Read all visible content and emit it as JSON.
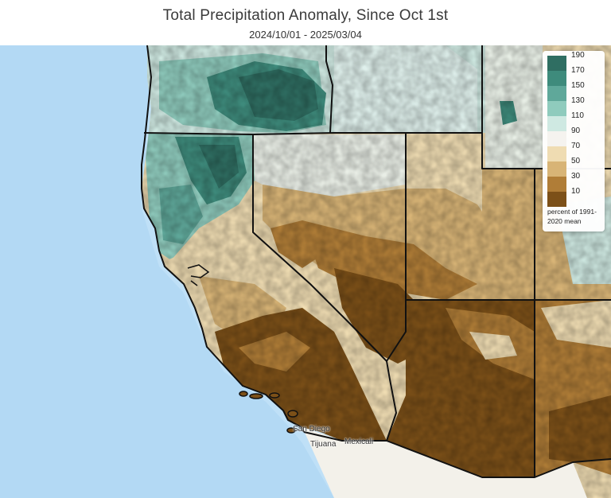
{
  "header": {
    "title": "Total Precipitation Anomaly, Since Oct 1st",
    "date_range": "2024/10/01 - 2025/03/04"
  },
  "legend": {
    "ticks": [
      "190",
      "170",
      "150",
      "130",
      "110",
      "90",
      "70",
      "50",
      "30",
      "10"
    ],
    "colors": [
      "#2f6e62",
      "#3e8b7c",
      "#5fa89a",
      "#8fcbbd",
      "#cfe9e2",
      "#f5f3ef",
      "#efdcb2",
      "#d8b476",
      "#b07d37",
      "#7c5018"
    ],
    "note": "percent of 1991-2020 mean"
  },
  "places": {
    "san_diego": "San Diego",
    "tijuana": "Tijuana",
    "mexicali": "Mexicali"
  }
}
